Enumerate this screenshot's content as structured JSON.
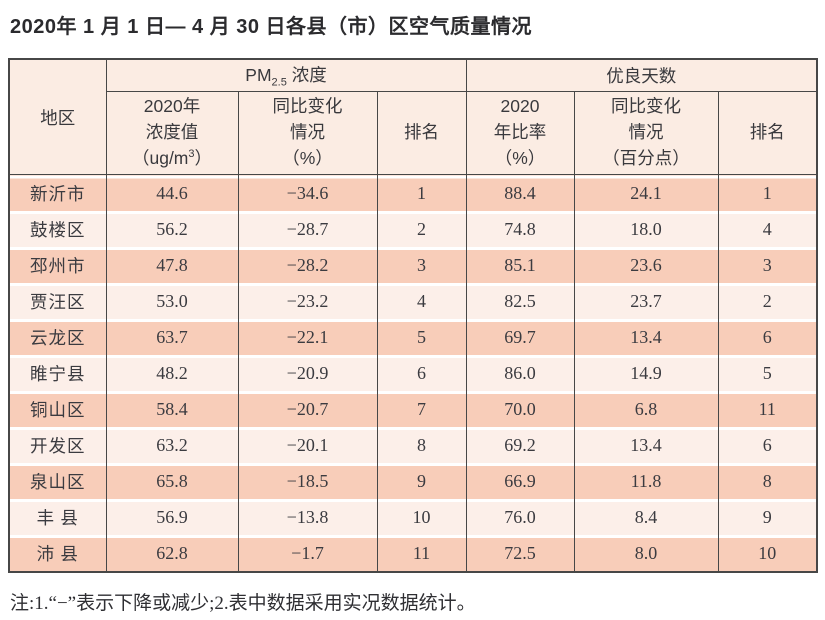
{
  "page": {
    "title": "2020年 1 月 1 日— 4 月 30 日各县（市）区空气质量情况",
    "footnote": "注:1.“−”表示下降或减少;2.表中数据采用实况数据统计。"
  },
  "colors": {
    "row_stripe_dark": "#f8cdb9",
    "row_stripe_light": "#fcefe9",
    "header_background": "#fbece3",
    "table_border": "#474747",
    "text": "#323237"
  },
  "table": {
    "region_header": "地区",
    "group_pm": {
      "prefix": "PM",
      "sub": "2.5",
      "suffix": " 浓度"
    },
    "group_days": "优良天数",
    "sub_pm_value": {
      "line1": "2020年",
      "line2": "浓度值",
      "line3_pre": "（ug/m",
      "line3_sup": "3",
      "line3_post": "）"
    },
    "sub_pm_change": {
      "line1": "同比变化",
      "line2": "情况",
      "line3": "（%）"
    },
    "sub_pm_rank": "排名",
    "sub_days_rate": {
      "line1": "2020",
      "line2": "年比率",
      "line3": "（%）"
    },
    "sub_days_change": {
      "line1": "同比变化",
      "line2": "情况",
      "line3": "（百分点）"
    },
    "sub_days_rank": "排名",
    "rows": [
      {
        "region": "新沂市",
        "pm_value": "44.6",
        "pm_change": "−34.6",
        "pm_rank": "1",
        "days_rate": "88.4",
        "days_change": "24.1",
        "days_rank": "1"
      },
      {
        "region": "鼓楼区",
        "pm_value": "56.2",
        "pm_change": "−28.7",
        "pm_rank": "2",
        "days_rate": "74.8",
        "days_change": "18.0",
        "days_rank": "4"
      },
      {
        "region": "邳州市",
        "pm_value": "47.8",
        "pm_change": "−28.2",
        "pm_rank": "3",
        "days_rate": "85.1",
        "days_change": "23.6",
        "days_rank": "3"
      },
      {
        "region": "贾汪区",
        "pm_value": "53.0",
        "pm_change": "−23.2",
        "pm_rank": "4",
        "days_rate": "82.5",
        "days_change": "23.7",
        "days_rank": "2"
      },
      {
        "region": "云龙区",
        "pm_value": "63.7",
        "pm_change": "−22.1",
        "pm_rank": "5",
        "days_rate": "69.7",
        "days_change": "13.4",
        "days_rank": "6"
      },
      {
        "region": "睢宁县",
        "pm_value": "48.2",
        "pm_change": "−20.9",
        "pm_rank": "6",
        "days_rate": "86.0",
        "days_change": "14.9",
        "days_rank": "5"
      },
      {
        "region": "铜山区",
        "pm_value": "58.4",
        "pm_change": "−20.7",
        "pm_rank": "7",
        "days_rate": "70.0",
        "days_change": "6.8",
        "days_rank": "11"
      },
      {
        "region": "开发区",
        "pm_value": "63.2",
        "pm_change": "−20.1",
        "pm_rank": "8",
        "days_rate": "69.2",
        "days_change": "13.4",
        "days_rank": "6"
      },
      {
        "region": "泉山区",
        "pm_value": "65.8",
        "pm_change": "−18.5",
        "pm_rank": "9",
        "days_rate": "66.9",
        "days_change": "11.8",
        "days_rank": "8"
      },
      {
        "region": "丰 县",
        "pm_value": "56.9",
        "pm_change": "−13.8",
        "pm_rank": "10",
        "days_rate": "76.0",
        "days_change": "8.4",
        "days_rank": "9"
      },
      {
        "region": "沛 县",
        "pm_value": "62.8",
        "pm_change": "−1.7",
        "pm_rank": "11",
        "days_rate": "72.5",
        "days_change": "8.0",
        "days_rank": "10"
      }
    ]
  }
}
